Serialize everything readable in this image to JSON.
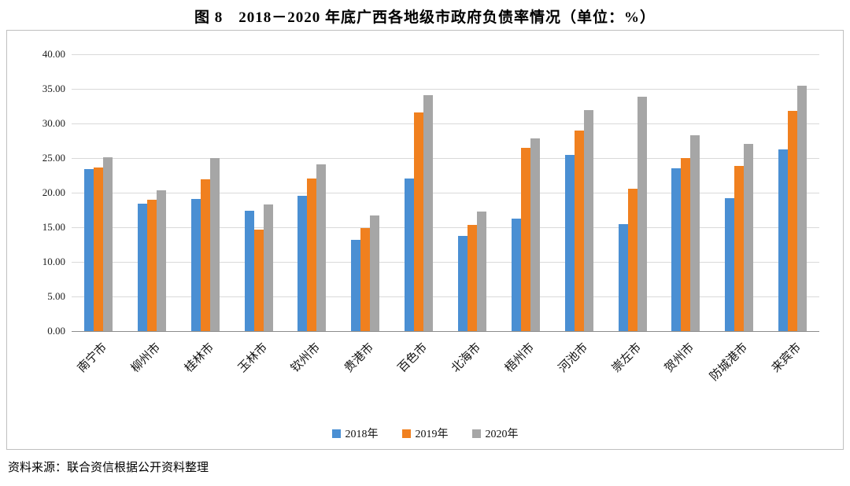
{
  "title": "图 8　2018－2020 年底广西各地级市政府负债率情况（单位：%）",
  "source": "资料来源：联合资信根据公开资料整理",
  "chart_data": {
    "type": "bar",
    "title": "图 8　2018－2020 年底广西各地级市政府负债率情况（单位：%）",
    "xlabel": "",
    "ylabel": "",
    "ylim": [
      0,
      40
    ],
    "ytick_step": 5,
    "ytick_labels": [
      "0.00",
      "5.00",
      "10.00",
      "15.00",
      "20.00",
      "25.00",
      "30.00",
      "35.00",
      "40.00"
    ],
    "grid": true,
    "legend_position": "bottom",
    "categories": [
      "南宁市",
      "柳州市",
      "桂林市",
      "玉林市",
      "钦州市",
      "贵港市",
      "百色市",
      "北海市",
      "梧州市",
      "河池市",
      "崇左市",
      "贺州市",
      "防城港市",
      "来宾市"
    ],
    "series": [
      {
        "name": "2018年",
        "color": "#4a8fd3",
        "values": [
          23.4,
          18.4,
          19.1,
          17.4,
          19.5,
          13.2,
          22.1,
          13.8,
          16.2,
          25.5,
          15.4,
          23.5,
          19.2,
          26.2
        ]
      },
      {
        "name": "2019年",
        "color": "#f0801f",
        "values": [
          23.6,
          19.0,
          21.9,
          14.7,
          22.1,
          14.9,
          31.6,
          15.3,
          26.5,
          29.0,
          20.6,
          25.0,
          23.9,
          31.8
        ]
      },
      {
        "name": "2020年",
        "color": "#a6a6a6",
        "values": [
          25.1,
          20.3,
          25.0,
          18.3,
          24.1,
          16.7,
          34.1,
          17.3,
          27.8,
          31.9,
          33.9,
          28.3,
          27.1,
          35.5
        ]
      }
    ]
  }
}
